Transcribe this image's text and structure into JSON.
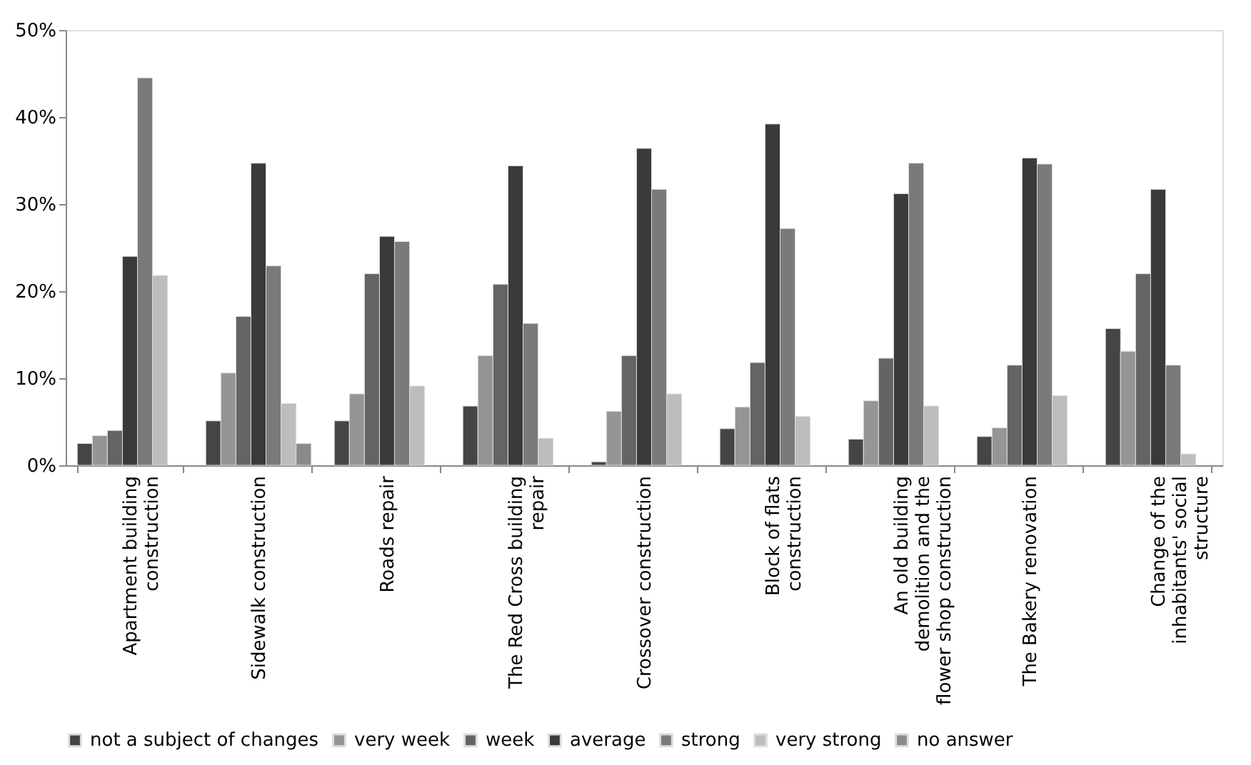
{
  "chart_data": {
    "type": "bar",
    "categories": [
      "Apartment building construction",
      "Sidewalk construction",
      "Roads repair",
      "The Red Cross building repair",
      "Crossover construction",
      "Block of flats construction",
      "An old building demolition and the flower shop construction",
      "The Bakery renovation",
      "Change of the inhabitants' social structure"
    ],
    "series": [
      {
        "name": "not a subject of changes",
        "color": "#454545",
        "values": [
          2.5,
          5.1,
          5.1,
          6.8,
          0.4,
          4.2,
          3.0,
          3.3,
          15.7
        ]
      },
      {
        "name": "very week",
        "color": "#959595",
        "values": [
          3.4,
          10.6,
          8.2,
          12.6,
          6.2,
          6.7,
          7.4,
          4.3,
          13.1
        ]
      },
      {
        "name": "week",
        "color": "#646464",
        "values": [
          4.0,
          17.1,
          22.0,
          20.8,
          12.6,
          11.8,
          12.3,
          11.5,
          22.0
        ]
      },
      {
        "name": "average",
        "color": "#3a3a3a",
        "values": [
          24.0,
          34.7,
          26.3,
          34.4,
          36.4,
          39.2,
          31.2,
          35.3,
          31.7
        ]
      },
      {
        "name": "strong",
        "color": "#7a7a7a",
        "values": [
          44.5,
          22.9,
          25.7,
          16.3,
          31.7,
          27.2,
          34.7,
          34.6,
          11.5
        ]
      },
      {
        "name": "very strong",
        "color": "#bdbdbd",
        "values": [
          21.8,
          7.1,
          9.1,
          3.1,
          8.2,
          5.6,
          6.8,
          8.0,
          1.3
        ]
      },
      {
        "name": "no answer",
        "color": "#8a8a8a",
        "values": [
          null,
          2.5,
          null,
          null,
          null,
          null,
          null,
          null,
          null
        ]
      }
    ],
    "ylim": [
      0,
      50
    ],
    "yticks": [
      {
        "value": 0,
        "label": "0%"
      },
      {
        "value": 10,
        "label": "10%"
      },
      {
        "value": 20,
        "label": "20%"
      },
      {
        "value": 30,
        "label": "30%"
      },
      {
        "value": 40,
        "label": "40%"
      },
      {
        "value": 50,
        "label": "50%"
      }
    ],
    "grid": false,
    "legend": "bottom"
  }
}
